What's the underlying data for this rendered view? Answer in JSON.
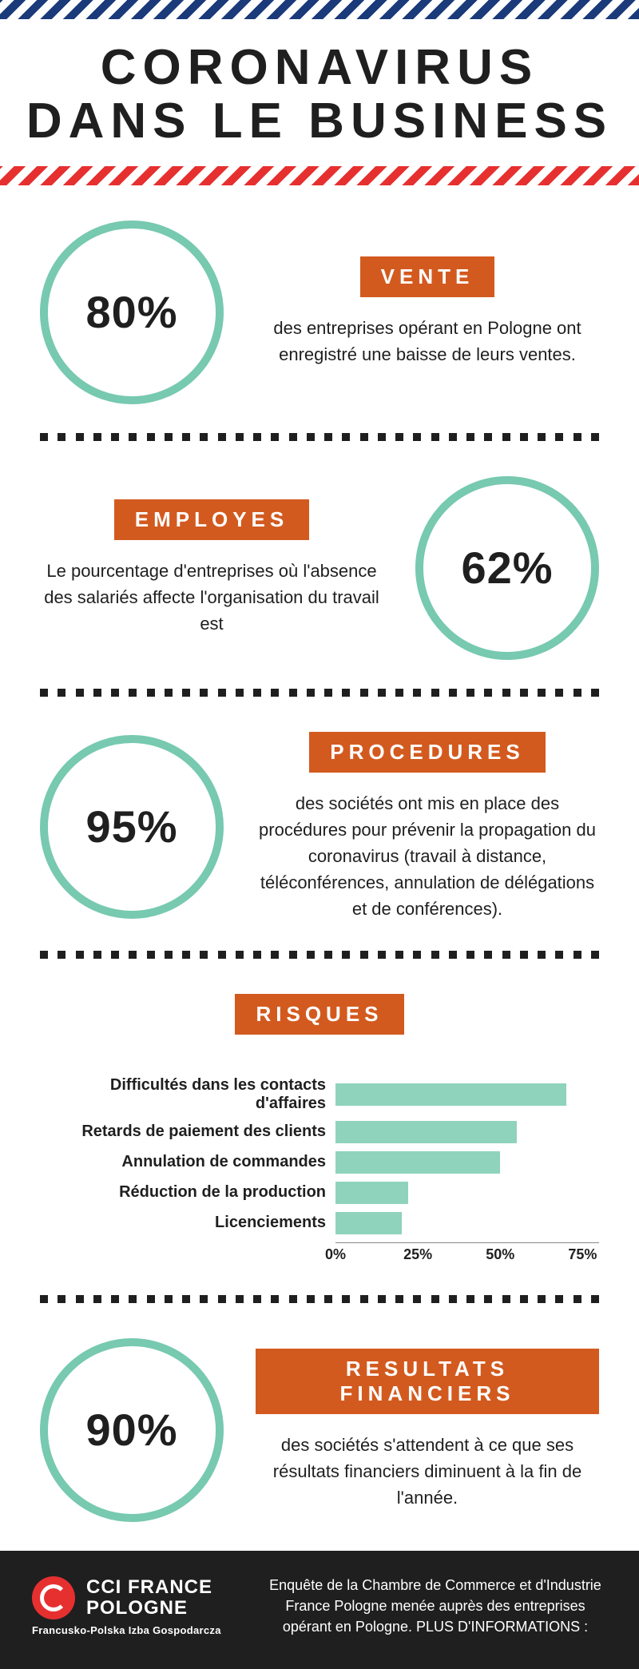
{
  "colors": {
    "accent_orange": "#d35a1f",
    "circle_border": "#77c9af",
    "bar_color": "#8fd3bd",
    "text_dark": "#1f1f1f",
    "footer_bg": "#1f1f1f",
    "blue_stripe": "#1a3a7a",
    "red_stripe": "#e63030"
  },
  "title": "CORONAVIRUS DANS LE BUSINESS",
  "sections": [
    {
      "id": "vente",
      "layout": "circle-left",
      "value": "80%",
      "label": "VENTE",
      "desc": "des entreprises opérant en Pologne ont enregistré une baisse de leurs ventes."
    },
    {
      "id": "employes",
      "layout": "circle-right",
      "value": "62%",
      "label": "EMPLOYES",
      "desc": "Le pourcentage d'entreprises où l'absence des salariés affecte l'organisation du travail est"
    },
    {
      "id": "procedures",
      "layout": "circle-left",
      "value": "95%",
      "label": "PROCEDURES",
      "desc": "des sociétés ont mis en place des procédures pour prévenir la propagation du coronavirus (travail à distance, téléconférences, annulation de délégations et de conférences)."
    }
  ],
  "risques": {
    "label": "RISQUES",
    "xmax": 80,
    "ticks": [
      0,
      25,
      50,
      75
    ],
    "tick_labels": [
      "0%",
      "25%",
      "50%",
      "75%"
    ],
    "items": [
      {
        "label": "Difficultés dans les contacts d'affaires",
        "value": 70
      },
      {
        "label": "Retards de paiement des clients",
        "value": 55
      },
      {
        "label": "Annulation de commandes",
        "value": 50
      },
      {
        "label": "Réduction de la production",
        "value": 22
      },
      {
        "label": "Licenciements",
        "value": 20
      }
    ]
  },
  "resultats": {
    "value": "90%",
    "label": "RESULTATS FINANCIERS",
    "desc": "des sociétés s'attendent à ce que ses résultats financiers diminuent à la fin de l'année."
  },
  "footer": {
    "logo_line1": "CCI FRANCE",
    "logo_line2": "POLOGNE",
    "logo_sub": "Francusko-Polska Izba Gospodarcza",
    "text": "Enquête de la Chambre de Commerce et d'Industrie France Pologne menée auprès des entreprises opérant en Pologne. PLUS D'INFORMATIONS :"
  },
  "style": {
    "circle_border_width": 10,
    "title_fontsize": 62,
    "badge_fontsize": 26,
    "desc_fontsize": 22
  }
}
